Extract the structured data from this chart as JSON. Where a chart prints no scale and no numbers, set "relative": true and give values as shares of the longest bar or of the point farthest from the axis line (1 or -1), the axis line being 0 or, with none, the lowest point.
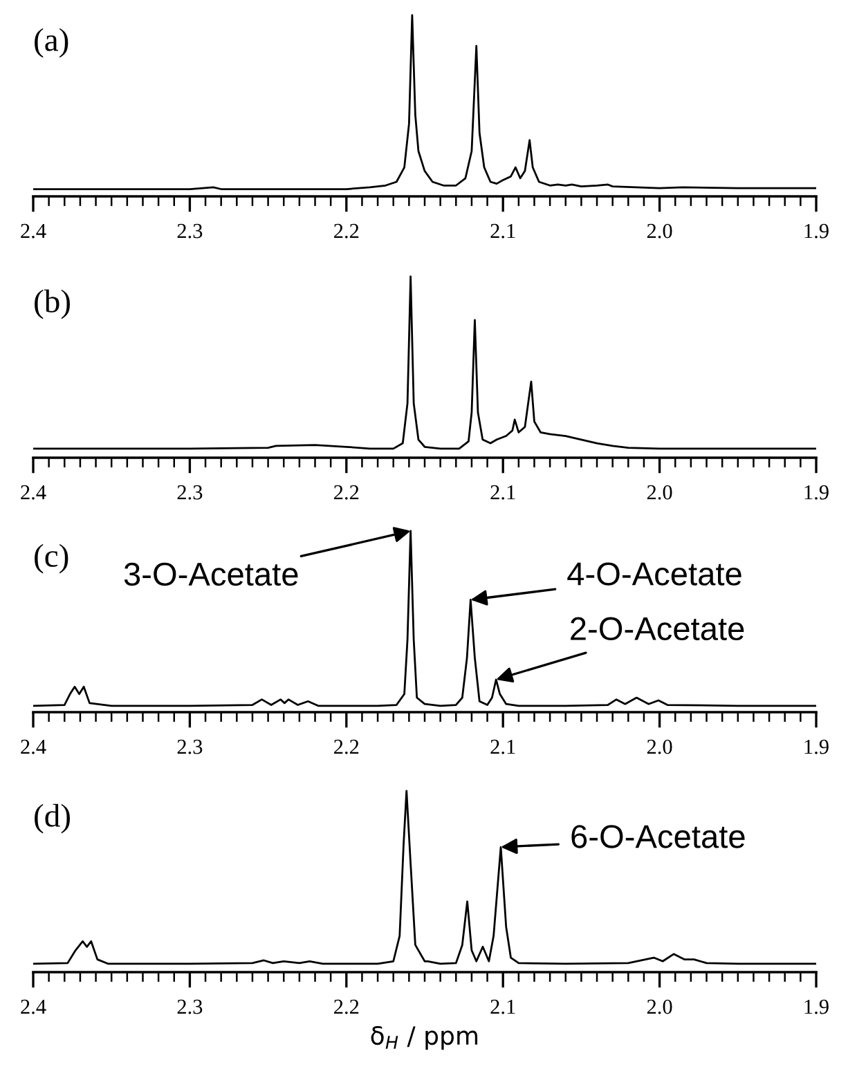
{
  "chart_data": [
    {
      "type": "line",
      "title": "(a)",
      "relative": true,
      "xlim": [
        2.4,
        1.9
      ],
      "xticks": [
        2.4,
        2.3,
        2.2,
        2.1,
        {
          "value": 2.0,
          "label": "2.0"
        },
        1.9,
        {
          "value": 2.39,
          "label": null
        },
        {
          "value": 2.38,
          "label": null
        },
        {
          "value": 2.37,
          "label": null
        },
        {
          "value": 2.36,
          "label": null
        },
        {
          "value": 2.35,
          "label": null
        },
        {
          "value": 2.34,
          "label": null
        },
        {
          "value": 2.33,
          "label": null
        },
        {
          "value": 2.32,
          "label": null
        },
        {
          "value": 2.31,
          "label": null
        },
        {
          "value": 2.29,
          "label": null
        },
        {
          "value": 2.28,
          "label": null
        },
        {
          "value": 2.27,
          "label": null
        },
        {
          "value": 2.26,
          "label": null
        },
        {
          "value": 2.25,
          "label": null
        },
        {
          "value": 2.24,
          "label": null
        },
        {
          "value": 2.23,
          "label": null
        },
        {
          "value": 2.22,
          "label": null
        },
        {
          "value": 2.21,
          "label": null
        },
        {
          "value": 2.19,
          "label": null
        },
        {
          "value": 2.18,
          "label": null
        },
        {
          "value": 2.17,
          "label": null
        },
        {
          "value": 2.16,
          "label": null
        },
        {
          "value": 2.15,
          "label": null
        },
        {
          "value": 2.14,
          "label": null
        },
        {
          "value": 2.13,
          "label": null
        },
        {
          "value": 2.12,
          "label": null
        },
        {
          "value": 2.11,
          "label": null
        },
        {
          "value": 2.09,
          "label": null
        },
        {
          "value": 2.08,
          "label": null
        },
        {
          "value": 2.07,
          "label": null
        },
        {
          "value": 2.06,
          "label": null
        },
        {
          "value": 2.05,
          "label": null
        },
        {
          "value": 2.04,
          "label": null
        },
        {
          "value": 2.03,
          "label": null
        },
        {
          "value": 2.02,
          "label": null
        },
        {
          "value": 2.01,
          "label": null
        },
        {
          "value": 1.99,
          "label": null
        },
        {
          "value": 1.98,
          "label": null
        },
        {
          "value": 1.97,
          "label": null
        },
        {
          "value": 1.96,
          "label": null
        },
        {
          "value": 1.95,
          "label": null
        },
        {
          "value": 1.94,
          "label": null
        },
        {
          "value": 1.93,
          "label": null
        },
        {
          "value": 1.92,
          "label": null
        },
        {
          "value": 1.91,
          "label": null
        }
      ],
      "series": [
        {
          "color": "#000000",
          "x": [
            2.4,
            2.3,
            2.285,
            2.28,
            2.2,
            2.185,
            2.175,
            2.168,
            2.163,
            2.16,
            2.158,
            2.156,
            2.154,
            2.15,
            2.145,
            2.138,
            2.13,
            2.124,
            2.12,
            2.117,
            2.115,
            2.112,
            2.108,
            2.104,
            2.1,
            2.095,
            2.092,
            2.089,
            2.086,
            2.083,
            2.081,
            2.077,
            2.07,
            2.065,
            2.06,
            2.056,
            2.05,
            2.04,
            2.033,
            2.03,
            2.015,
            2.0,
            1.985,
            1.95,
            1.9
          ],
          "values": [
            0.04,
            0.04,
            0.05,
            0.04,
            0.04,
            0.05,
            0.06,
            0.08,
            0.16,
            0.4,
            1.0,
            0.45,
            0.25,
            0.14,
            0.08,
            0.06,
            0.06,
            0.1,
            0.25,
            0.83,
            0.35,
            0.16,
            0.08,
            0.07,
            0.09,
            0.11,
            0.16,
            0.1,
            0.14,
            0.31,
            0.16,
            0.08,
            0.06,
            0.065,
            0.06,
            0.065,
            0.055,
            0.06,
            0.065,
            0.055,
            0.05,
            0.045,
            0.05,
            0.045,
            0.045
          ]
        }
      ]
    },
    {
      "type": "line",
      "title": "(b)",
      "relative": true,
      "xlim": [
        2.4,
        1.9
      ],
      "xticks": [
        2.4,
        2.3,
        2.2,
        2.1,
        {
          "value": 2.0,
          "label": "2.0"
        },
        1.9,
        {
          "value": 2.39,
          "label": null
        },
        {
          "value": 2.38,
          "label": null
        },
        {
          "value": 2.37,
          "label": null
        },
        {
          "value": 2.36,
          "label": null
        },
        {
          "value": 2.35,
          "label": null
        },
        {
          "value": 2.34,
          "label": null
        },
        {
          "value": 2.33,
          "label": null
        },
        {
          "value": 2.32,
          "label": null
        },
        {
          "value": 2.31,
          "label": null
        },
        {
          "value": 2.29,
          "label": null
        },
        {
          "value": 2.28,
          "label": null
        },
        {
          "value": 2.27,
          "label": null
        },
        {
          "value": 2.26,
          "label": null
        },
        {
          "value": 2.25,
          "label": null
        },
        {
          "value": 2.24,
          "label": null
        },
        {
          "value": 2.23,
          "label": null
        },
        {
          "value": 2.22,
          "label": null
        },
        {
          "value": 2.21,
          "label": null
        },
        {
          "value": 2.19,
          "label": null
        },
        {
          "value": 2.18,
          "label": null
        },
        {
          "value": 2.17,
          "label": null
        },
        {
          "value": 2.16,
          "label": null
        },
        {
          "value": 2.15,
          "label": null
        },
        {
          "value": 2.14,
          "label": null
        },
        {
          "value": 2.13,
          "label": null
        },
        {
          "value": 2.12,
          "label": null
        },
        {
          "value": 2.11,
          "label": null
        },
        {
          "value": 2.09,
          "label": null
        },
        {
          "value": 2.08,
          "label": null
        },
        {
          "value": 2.07,
          "label": null
        },
        {
          "value": 2.06,
          "label": null
        },
        {
          "value": 2.05,
          "label": null
        },
        {
          "value": 2.04,
          "label": null
        },
        {
          "value": 2.03,
          "label": null
        },
        {
          "value": 2.02,
          "label": null
        },
        {
          "value": 2.01,
          "label": null
        },
        {
          "value": 1.99,
          "label": null
        },
        {
          "value": 1.98,
          "label": null
        },
        {
          "value": 1.97,
          "label": null
        },
        {
          "value": 1.96,
          "label": null
        },
        {
          "value": 1.95,
          "label": null
        },
        {
          "value": 1.94,
          "label": null
        },
        {
          "value": 1.93,
          "label": null
        },
        {
          "value": 1.92,
          "label": null
        },
        {
          "value": 1.91,
          "label": null
        }
      ],
      "series": [
        {
          "color": "#000000",
          "x": [
            2.4,
            2.3,
            2.25,
            2.245,
            2.22,
            2.2,
            2.185,
            2.17,
            2.164,
            2.161,
            2.159,
            2.157,
            2.154,
            2.152,
            2.15,
            2.14,
            2.128,
            2.122,
            2.12,
            2.118,
            2.116,
            2.113,
            2.108,
            2.104,
            2.098,
            2.094,
            2.0925,
            2.09,
            2.086,
            2.082,
            2.08,
            2.076,
            2.07,
            2.06,
            2.05,
            2.04,
            2.03,
            2.02,
            2.0,
            1.95,
            1.9
          ],
          "values": [
            0.05,
            0.05,
            0.055,
            0.065,
            0.07,
            0.06,
            0.05,
            0.05,
            0.08,
            0.3,
            1.0,
            0.3,
            0.1,
            0.08,
            0.06,
            0.05,
            0.05,
            0.09,
            0.25,
            0.76,
            0.25,
            0.1,
            0.08,
            0.1,
            0.12,
            0.15,
            0.21,
            0.14,
            0.17,
            0.42,
            0.2,
            0.14,
            0.13,
            0.12,
            0.1,
            0.08,
            0.065,
            0.055,
            0.05,
            0.05,
            0.05
          ]
        }
      ]
    },
    {
      "type": "line",
      "title": "(c)",
      "relative": true,
      "xlim": [
        2.4,
        1.9
      ],
      "xticks": [
        2.4,
        2.3,
        2.2,
        2.1,
        {
          "value": 2.0,
          "label": "2.0"
        },
        1.9,
        {
          "value": 2.39,
          "label": null
        },
        {
          "value": 2.38,
          "label": null
        },
        {
          "value": 2.37,
          "label": null
        },
        {
          "value": 2.36,
          "label": null
        },
        {
          "value": 2.35,
          "label": null
        },
        {
          "value": 2.34,
          "label": null
        },
        {
          "value": 2.33,
          "label": null
        },
        {
          "value": 2.32,
          "label": null
        },
        {
          "value": 2.31,
          "label": null
        },
        {
          "value": 2.29,
          "label": null
        },
        {
          "value": 2.28,
          "label": null
        },
        {
          "value": 2.27,
          "label": null
        },
        {
          "value": 2.26,
          "label": null
        },
        {
          "value": 2.25,
          "label": null
        },
        {
          "value": 2.24,
          "label": null
        },
        {
          "value": 2.23,
          "label": null
        },
        {
          "value": 2.22,
          "label": null
        },
        {
          "value": 2.21,
          "label": null
        },
        {
          "value": 2.19,
          "label": null
        },
        {
          "value": 2.18,
          "label": null
        },
        {
          "value": 2.17,
          "label": null
        },
        {
          "value": 2.16,
          "label": null
        },
        {
          "value": 2.15,
          "label": null
        },
        {
          "value": 2.14,
          "label": null
        },
        {
          "value": 2.13,
          "label": null
        },
        {
          "value": 2.12,
          "label": null
        },
        {
          "value": 2.11,
          "label": null
        },
        {
          "value": 2.09,
          "label": null
        },
        {
          "value": 2.08,
          "label": null
        },
        {
          "value": 2.07,
          "label": null
        },
        {
          "value": 2.06,
          "label": null
        },
        {
          "value": 2.05,
          "label": null
        },
        {
          "value": 2.04,
          "label": null
        },
        {
          "value": 2.03,
          "label": null
        },
        {
          "value": 2.02,
          "label": null
        },
        {
          "value": 2.01,
          "label": null
        },
        {
          "value": 1.99,
          "label": null
        },
        {
          "value": 1.98,
          "label": null
        },
        {
          "value": 1.97,
          "label": null
        },
        {
          "value": 1.96,
          "label": null
        },
        {
          "value": 1.95,
          "label": null
        },
        {
          "value": 1.94,
          "label": null
        },
        {
          "value": 1.93,
          "label": null
        },
        {
          "value": 1.92,
          "label": null
        },
        {
          "value": 1.91,
          "label": null
        }
      ],
      "annotations": [
        {
          "text": "3-O-Acetate",
          "x": 2.159,
          "y": 1.0
        },
        {
          "text": "4-O-Acetate",
          "x": 2.1207,
          "y": 0.62
        },
        {
          "text": "2-O-Acetate",
          "x": 2.1044,
          "y": 0.18
        }
      ],
      "series": [
        {
          "color": "#000000",
          "x": [
            2.4,
            2.38,
            2.3765,
            2.3735,
            2.3706,
            2.3677,
            2.364,
            2.35,
            2.3,
            2.26,
            2.254,
            2.248,
            2.242,
            2.2395,
            2.237,
            2.231,
            2.2245,
            2.218,
            2.18,
            2.168,
            2.163,
            2.161,
            2.159,
            2.157,
            2.155,
            2.15,
            2.14,
            2.13,
            2.126,
            2.123,
            2.1207,
            2.118,
            2.115,
            2.11,
            2.107,
            2.1044,
            2.102,
            2.098,
            2.09,
            2.06,
            2.033,
            2.0276,
            2.022,
            2.0147,
            2.007,
            2.0007,
            1.995,
            1.95,
            1.9
          ],
          "values": [
            0.035,
            0.04,
            0.1,
            0.14,
            0.1,
            0.14,
            0.05,
            0.035,
            0.035,
            0.04,
            0.07,
            0.04,
            0.07,
            0.05,
            0.07,
            0.04,
            0.06,
            0.035,
            0.035,
            0.04,
            0.1,
            0.4,
            1.0,
            0.4,
            0.08,
            0.045,
            0.035,
            0.04,
            0.08,
            0.3,
            0.62,
            0.3,
            0.06,
            0.04,
            0.08,
            0.18,
            0.1,
            0.045,
            0.035,
            0.035,
            0.04,
            0.07,
            0.045,
            0.08,
            0.045,
            0.065,
            0.04,
            0.035,
            0.035
          ]
        }
      ]
    },
    {
      "type": "line",
      "title": "(d)",
      "relative": true,
      "xlim": [
        2.4,
        1.9
      ],
      "xlabel": "δ$_{H}$ / ppm",
      "xticks": [
        2.4,
        2.3,
        2.2,
        2.1,
        {
          "value": 2.0,
          "label": "2.0"
        },
        1.9,
        {
          "value": 2.39,
          "label": null
        },
        {
          "value": 2.38,
          "label": null
        },
        {
          "value": 2.37,
          "label": null
        },
        {
          "value": 2.36,
          "label": null
        },
        {
          "value": 2.35,
          "label": null
        },
        {
          "value": 2.34,
          "label": null
        },
        {
          "value": 2.33,
          "label": null
        },
        {
          "value": 2.32,
          "label": null
        },
        {
          "value": 2.31,
          "label": null
        },
        {
          "value": 2.29,
          "label": null
        },
        {
          "value": 2.28,
          "label": null
        },
        {
          "value": 2.27,
          "label": null
        },
        {
          "value": 2.26,
          "label": null
        },
        {
          "value": 2.25,
          "label": null
        },
        {
          "value": 2.24,
          "label": null
        },
        {
          "value": 2.23,
          "label": null
        },
        {
          "value": 2.22,
          "label": null
        },
        {
          "value": 2.21,
          "label": null
        },
        {
          "value": 2.19,
          "label": null
        },
        {
          "value": 2.18,
          "label": null
        },
        {
          "value": 2.17,
          "label": null
        },
        {
          "value": 2.16,
          "label": null
        },
        {
          "value": 2.15,
          "label": null
        },
        {
          "value": 2.14,
          "label": null
        },
        {
          "value": 2.13,
          "label": null
        },
        {
          "value": 2.12,
          "label": null
        },
        {
          "value": 2.11,
          "label": null
        },
        {
          "value": 2.09,
          "label": null
        },
        {
          "value": 2.08,
          "label": null
        },
        {
          "value": 2.07,
          "label": null
        },
        {
          "value": 2.06,
          "label": null
        },
        {
          "value": 2.05,
          "label": null
        },
        {
          "value": 2.04,
          "label": null
        },
        {
          "value": 2.03,
          "label": null
        },
        {
          "value": 2.02,
          "label": null
        },
        {
          "value": 2.01,
          "label": null
        },
        {
          "value": 1.99,
          "label": null
        },
        {
          "value": 1.98,
          "label": null
        },
        {
          "value": 1.97,
          "label": null
        },
        {
          "value": 1.96,
          "label": null
        },
        {
          "value": 1.95,
          "label": null
        },
        {
          "value": 1.94,
          "label": null
        },
        {
          "value": 1.93,
          "label": null
        },
        {
          "value": 1.92,
          "label": null
        },
        {
          "value": 1.91,
          "label": null
        }
      ],
      "annotations": [
        {
          "text": "6-O-Acetate",
          "x": 2.1014,
          "y": 0.69
        }
      ],
      "series": [
        {
          "color": "#000000",
          "x": [
            2.4,
            2.378,
            2.373,
            2.3684,
            2.3657,
            2.363,
            2.359,
            2.352,
            2.3,
            2.26,
            2.2527,
            2.247,
            2.24,
            2.23,
            2.2235,
            2.215,
            2.18,
            2.17,
            2.166,
            2.1635,
            2.1616,
            2.159,
            2.156,
            2.15,
            2.148,
            2.14,
            2.13,
            2.126,
            2.1228,
            2.12,
            2.117,
            2.1129,
            2.109,
            2.106,
            2.1014,
            2.098,
            2.095,
            2.09,
            2.06,
            2.02,
            2.0037,
            1.998,
            1.991,
            1.984,
            1.978,
            1.97,
            1.95,
            1.9
          ],
          "values": [
            0.046,
            0.05,
            0.12,
            0.17,
            0.14,
            0.17,
            0.07,
            0.046,
            0.046,
            0.05,
            0.065,
            0.05,
            0.06,
            0.05,
            0.06,
            0.046,
            0.046,
            0.06,
            0.2,
            0.7,
            1.0,
            0.6,
            0.15,
            0.06,
            0.06,
            0.046,
            0.05,
            0.15,
            0.39,
            0.12,
            0.06,
            0.14,
            0.06,
            0.2,
            0.69,
            0.25,
            0.08,
            0.05,
            0.046,
            0.05,
            0.08,
            0.06,
            0.1,
            0.07,
            0.07,
            0.05,
            0.046,
            0.046
          ]
        }
      ]
    }
  ]
}
